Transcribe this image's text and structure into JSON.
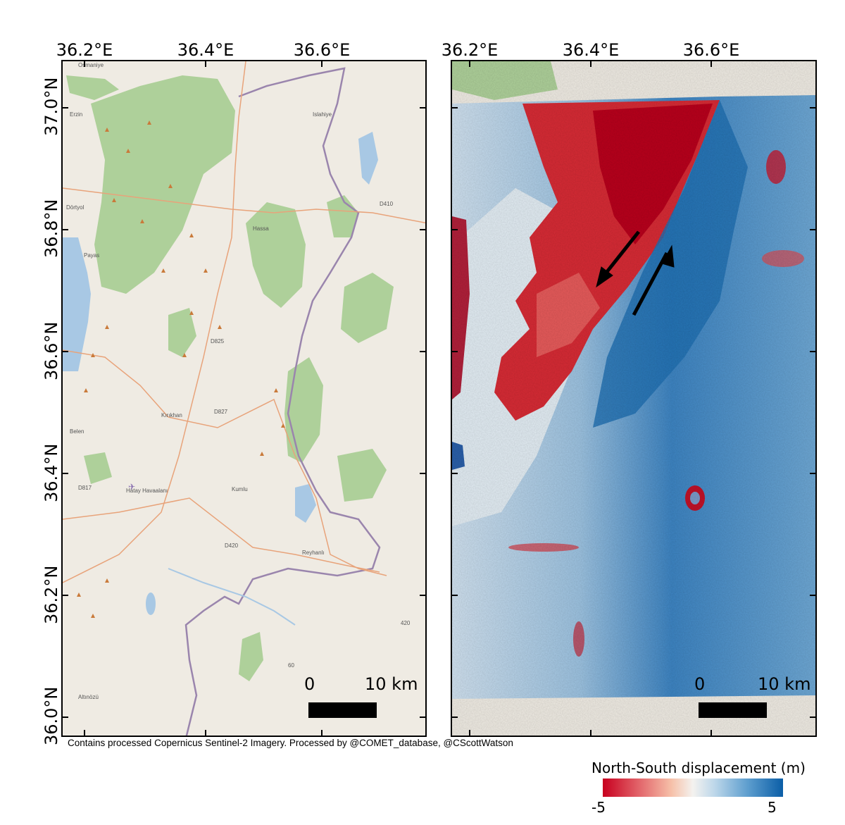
{
  "longitude_ticks": [
    "36.2°E",
    "36.4°E",
    "36.6°E"
  ],
  "latitude_ticks": [
    "37.0°N",
    "36.8°N",
    "36.6°N",
    "36.4°N",
    "36.2°N",
    "36.0°N"
  ],
  "left_panel": {
    "scale_zero": "0",
    "scale_length": "10 km"
  },
  "right_panel": {
    "scale_zero": "0",
    "scale_length": "10 km"
  },
  "credit": "Contains processed Copernicus Sentinel-2 Imagery. Processed by @COMET_database, @CScottWatson",
  "legend": {
    "title": "North-South displacement (m)",
    "min_label": "-5",
    "max_label": "5",
    "colors": [
      "#c8001f",
      "#f4f2ef",
      "#0b5ea7"
    ]
  },
  "map_place_labels": [
    "Osmaniye",
    "Islahiye",
    "Erzin",
    "Dörtyol",
    "Payas",
    "Hassa",
    "Kırıkhan",
    "Belen",
    "Kumlu",
    "Reyhanlı",
    "Altınözü",
    "Hatay Havaalanı",
    "D825",
    "D827",
    "D817",
    "D420",
    "D410",
    "420",
    "60"
  ],
  "colors": {
    "land": "#efebe3",
    "forest": "#aed09a",
    "water": "#a8c8e4",
    "border": "#9a85ad",
    "road": "#e8a37a",
    "peak": "#c97a3a",
    "arrow": "#000000"
  }
}
